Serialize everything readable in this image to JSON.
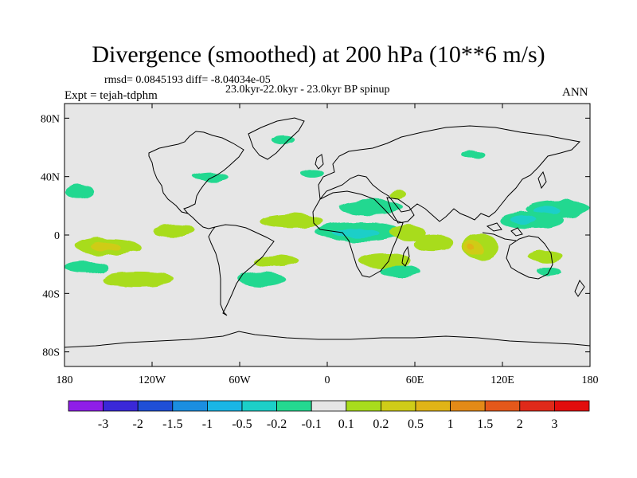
{
  "chart_data": {
    "type": "heatmap",
    "title": "Divergence (smoothed) at 200 hPa (10**6 m/s)",
    "stats_text": "rmsd= 0.0845193 diff= -8.04034e-05",
    "period_text": "23.0kyr-22.0kyr - 23.0kyr BP spinup",
    "experiment_text": "Expt = tejah-tdphm",
    "season_text": "ANN",
    "xlim": [
      -180,
      180
    ],
    "ylim": [
      -90,
      90
    ],
    "x_ticks": [
      {
        "value": -180,
        "label": "180"
      },
      {
        "value": -120,
        "label": "120W"
      },
      {
        "value": -60,
        "label": "60W"
      },
      {
        "value": 0,
        "label": "0"
      },
      {
        "value": 60,
        "label": "60E"
      },
      {
        "value": 120,
        "label": "120E"
      },
      {
        "value": 180,
        "label": "180"
      }
    ],
    "y_ticks": [
      {
        "value": 80,
        "label": "80N"
      },
      {
        "value": 40,
        "label": "40N"
      },
      {
        "value": 0,
        "label": "0"
      },
      {
        "value": -40,
        "label": "40S"
      },
      {
        "value": -80,
        "label": "80S"
      }
    ],
    "colorbar": {
      "levels": [
        "-3",
        "-2",
        "-1.5",
        "-1",
        "-0.5",
        "-0.2",
        "-0.1",
        "0.1",
        "0.2",
        "0.5",
        "1",
        "1.5",
        "2",
        "3"
      ],
      "colors": [
        "#8f1ee8",
        "#3a28d8",
        "#1f4fd6",
        "#1b8ee0",
        "#19b6e6",
        "#1ccfc8",
        "#24d890",
        "#e6e6e6",
        "#a8dc1c",
        "#cfcc18",
        "#e0b417",
        "#e38a17",
        "#e4581a",
        "#df2a1a",
        "#e20d0d"
      ]
    },
    "background_value_color": "#e6e6e6",
    "features": [
      {
        "name": "npac-west-band",
        "lon": 158,
        "lat": 18,
        "rlon": 22,
        "rlat": 6,
        "color": "#24d890"
      },
      {
        "name": "npac-west-core",
        "lon": 150,
        "lat": 17,
        "rlon": 9,
        "rlat": 3,
        "color": "#1ccfc8"
      },
      {
        "name": "wpac-warm-pool",
        "lon": 140,
        "lat": 10,
        "rlon": 22,
        "rlat": 6,
        "color": "#24d890"
      },
      {
        "name": "wpac-core",
        "lon": 135,
        "lat": 10,
        "rlon": 9,
        "rlat": 3,
        "color": "#1ccfc8"
      },
      {
        "name": "indonesia-pos",
        "lon": 105,
        "lat": -8,
        "rlon": 12,
        "rlat": 9,
        "color": "#a8dc1c"
      },
      {
        "name": "indonesia-core",
        "lon": 100,
        "lat": -9,
        "rlon": 6,
        "rlat": 5,
        "color": "#cfcc18"
      },
      {
        "name": "indonesia-max",
        "lon": 99,
        "lat": -9,
        "rlon": 2,
        "rlat": 2,
        "color": "#e0b417"
      },
      {
        "name": "indian-ocean-pos",
        "lon": 72,
        "lat": -5,
        "rlon": 14,
        "rlat": 6,
        "color": "#a8dc1c"
      },
      {
        "name": "africa-neg",
        "lon": 22,
        "lat": 2,
        "rlon": 30,
        "rlat": 7,
        "color": "#24d890"
      },
      {
        "name": "africa-neg-core",
        "lon": 20,
        "lat": 1,
        "rlon": 16,
        "rlat": 3,
        "color": "#1ccfc8"
      },
      {
        "name": "sahel-neg",
        "lon": 30,
        "lat": 19,
        "rlon": 22,
        "rlat": 5,
        "color": "#24d890"
      },
      {
        "name": "mideast-pos",
        "lon": 55,
        "lat": 2,
        "rlon": 12,
        "rlat": 5,
        "color": "#a8dc1c"
      },
      {
        "name": "sindian-pos",
        "lon": 40,
        "lat": -18,
        "rlon": 18,
        "rlat": 5,
        "color": "#a8dc1c"
      },
      {
        "name": "sindian-neg",
        "lon": 50,
        "lat": -25,
        "rlon": 14,
        "rlat": 4,
        "color": "#24d890"
      },
      {
        "name": "atl-pos",
        "lon": -25,
        "lat": 10,
        "rlon": 22,
        "rlat": 5,
        "color": "#a8dc1c"
      },
      {
        "name": "satl-pos",
        "lon": -35,
        "lat": -18,
        "rlon": 16,
        "rlat": 4,
        "color": "#a8dc1c"
      },
      {
        "name": "epac-pos",
        "lon": -150,
        "lat": -8,
        "rlon": 22,
        "rlat": 6,
        "color": "#a8dc1c"
      },
      {
        "name": "epac-core",
        "lon": -152,
        "lat": -8,
        "rlon": 10,
        "rlat": 3,
        "color": "#cfcc18"
      },
      {
        "name": "cpac-pos",
        "lon": -105,
        "lat": 3,
        "rlon": 15,
        "rlat": 4,
        "color": "#a8dc1c"
      },
      {
        "name": "spac-pos",
        "lon": -130,
        "lat": -30,
        "rlon": 25,
        "rlat": 5,
        "color": "#a8dc1c"
      },
      {
        "name": "spac-neg",
        "lon": -165,
        "lat": -22,
        "rlon": 15,
        "rlat": 4,
        "color": "#24d890"
      },
      {
        "name": "samerica-neg",
        "lon": -45,
        "lat": -30,
        "rlon": 16,
        "rlat": 5,
        "color": "#24d890"
      },
      {
        "name": "npac-east-neg",
        "lon": -170,
        "lat": 30,
        "rlon": 10,
        "rlat": 5,
        "color": "#24d890"
      },
      {
        "name": "greenland-neg",
        "lon": -30,
        "lat": 65,
        "rlon": 8,
        "rlat": 3,
        "color": "#24d890"
      },
      {
        "name": "nam-neg",
        "lon": -80,
        "lat": 40,
        "rlon": 12,
        "rlat": 3,
        "color": "#24d890"
      },
      {
        "name": "nasia-neg",
        "lon": 100,
        "lat": 55,
        "rlon": 8,
        "rlat": 3,
        "color": "#24d890"
      },
      {
        "name": "arabia-pos",
        "lon": 48,
        "lat": 28,
        "rlon": 6,
        "rlat": 3,
        "color": "#a8dc1c"
      },
      {
        "name": "aus-pos",
        "lon": 150,
        "lat": -15,
        "rlon": 12,
        "rlat": 4,
        "color": "#a8dc1c"
      },
      {
        "name": "aus-neg",
        "lon": 152,
        "lat": -25,
        "rlon": 8,
        "rlat": 3,
        "color": "#24d890"
      },
      {
        "name": "ne-atl-neg",
        "lon": -10,
        "lat": 42,
        "rlon": 8,
        "rlat": 3,
        "color": "#24d890"
      }
    ]
  }
}
